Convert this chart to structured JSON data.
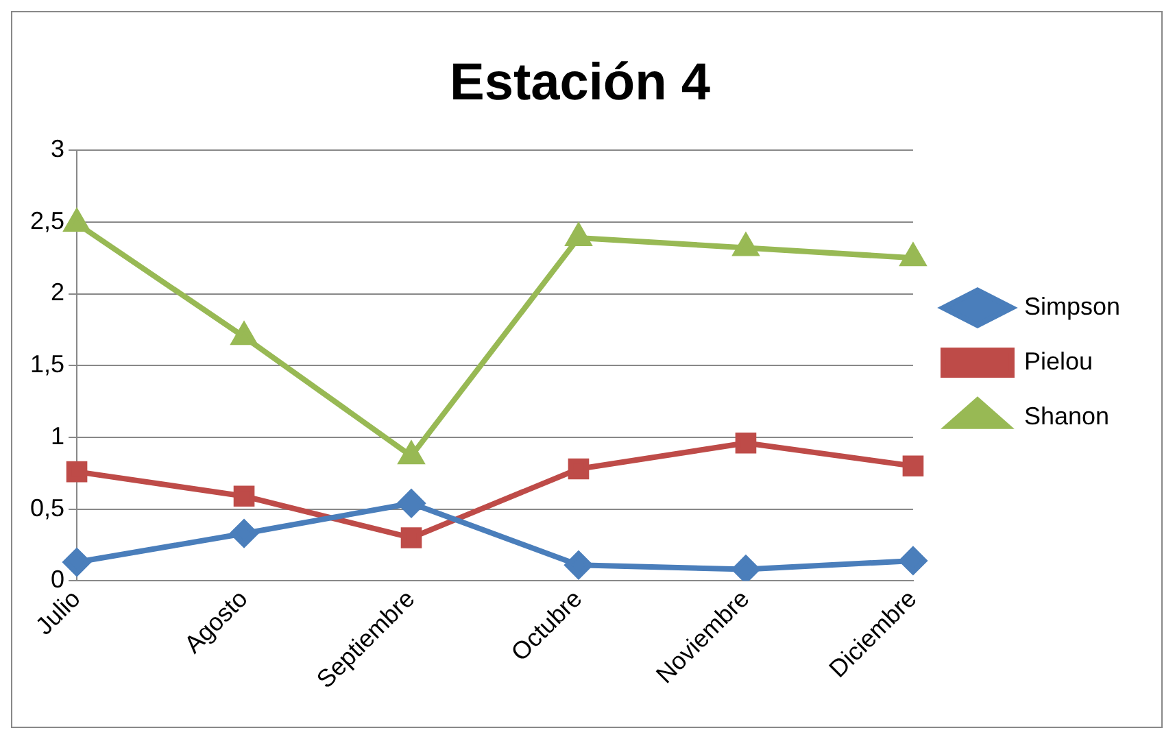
{
  "chart_data": {
    "type": "line",
    "title": "Estación 4",
    "categories": [
      "Julio",
      "Agosto",
      "Septiembre",
      "Octubre",
      "Noviembre",
      "Diciembre"
    ],
    "series": [
      {
        "name": "Simpson",
        "color": "#4a7ebb",
        "marker": "diamond",
        "values": [
          0.13,
          0.33,
          0.54,
          0.11,
          0.08,
          0.14
        ]
      },
      {
        "name": "Pielou",
        "color": "#be4b48",
        "marker": "square",
        "values": [
          0.76,
          0.59,
          0.3,
          0.78,
          0.96,
          0.8
        ]
      },
      {
        "name": "Shanon",
        "color": "#98b954",
        "marker": "triangle",
        "values": [
          2.49,
          1.7,
          0.87,
          2.39,
          2.32,
          2.25
        ]
      }
    ],
    "ylim": [
      0,
      3
    ],
    "yticks": [
      {
        "value": 0,
        "label": "0"
      },
      {
        "value": 0.5,
        "label": "0,5"
      },
      {
        "value": 1,
        "label": "1"
      },
      {
        "value": 1.5,
        "label": "1,5"
      },
      {
        "value": 2,
        "label": "2"
      },
      {
        "value": 2.5,
        "label": "2,5"
      },
      {
        "value": 3,
        "label": "3"
      }
    ],
    "grid": "y",
    "legend": "right"
  }
}
